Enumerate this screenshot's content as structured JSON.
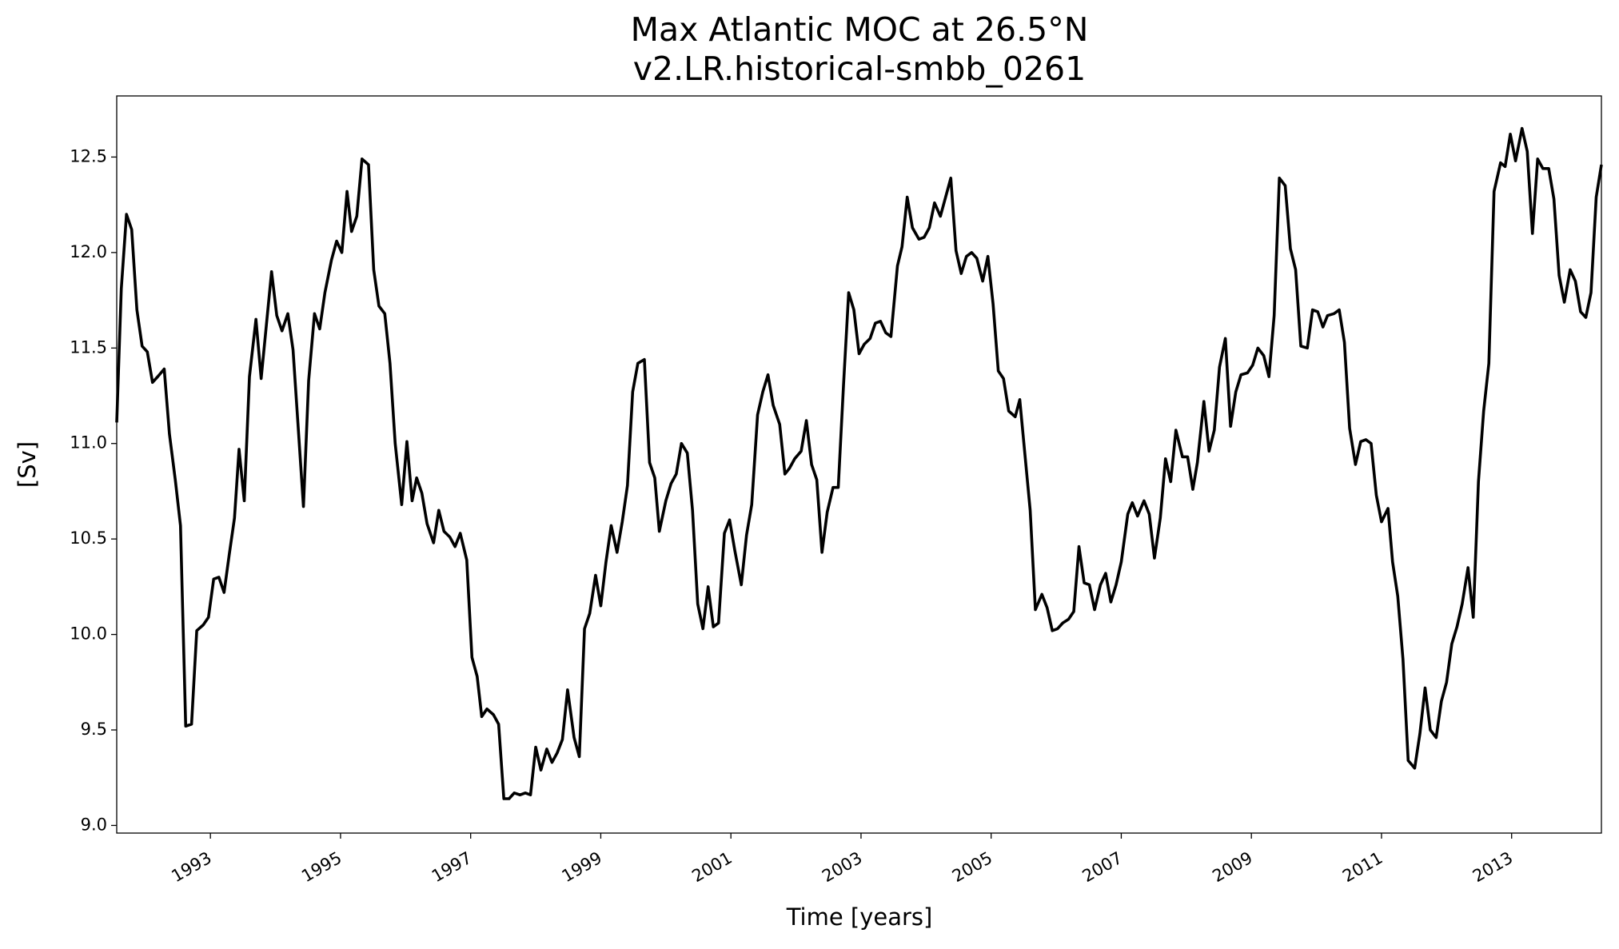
{
  "chart_data": {
    "type": "line",
    "title": "Max Atlantic MOC at 26.5°N",
    "subtitle": "v2.LR.historical-smbb_0261",
    "x_label": "Time [years]",
    "y_label": "[Sv]",
    "xlim": [
      1991.56,
      2014.38
    ],
    "ylim": [
      8.96,
      12.82
    ],
    "xticks": [
      1993,
      1995,
      1997,
      1999,
      2001,
      2003,
      2005,
      2007,
      2009,
      2011,
      2013
    ],
    "yticks": [
      {
        "value": 9,
        "label": "9.0"
      },
      {
        "value": 9.5,
        "label": "9.5"
      },
      {
        "value": 10,
        "label": "10.0"
      },
      {
        "value": 10.5,
        "label": "10.5"
      },
      {
        "value": 11,
        "label": "11.0"
      },
      {
        "value": 11.5,
        "label": "11.5"
      },
      {
        "value": 12,
        "label": "12.0"
      },
      {
        "value": 12.5,
        "label": "12.5"
      }
    ],
    "grid": false,
    "x": [
      1991.56,
      1991.63,
      1991.71,
      1991.79,
      1991.87,
      1991.95,
      1992.03,
      1992.11,
      1992.19,
      1992.29,
      1992.37,
      1992.46,
      1992.54,
      1992.62,
      1992.71,
      1992.79,
      1992.89,
      1992.97,
      1993.05,
      1993.13,
      1993.21,
      1993.29,
      1993.37,
      1993.44,
      1993.52,
      1993.6,
      1993.7,
      1993.78,
      1993.86,
      1993.94,
      1994.02,
      1994.1,
      1994.19,
      1994.27,
      1994.35,
      1994.43,
      1994.51,
      1994.6,
      1994.68,
      1994.76,
      1994.86,
      1994.94,
      1995.02,
      1995.1,
      1995.17,
      1995.25,
      1995.33,
      1995.43,
      1995.51,
      1995.59,
      1995.68,
      1995.76,
      1995.84,
      1995.94,
      1996.02,
      1996.1,
      1996.17,
      1996.25,
      1996.33,
      1996.43,
      1996.51,
      1996.59,
      1996.68,
      1996.76,
      1996.84,
      1996.94,
      1997.02,
      1997.1,
      1997.17,
      1997.25,
      1997.35,
      1997.43,
      1997.51,
      1997.59,
      1997.67,
      1997.76,
      1997.84,
      1997.92,
      1998.0,
      1998.08,
      1998.17,
      1998.25,
      1998.33,
      1998.41,
      1998.49,
      1998.59,
      1998.67,
      1998.75,
      1998.83,
      1998.92,
      1999.0,
      1999.08,
      1999.16,
      1999.25,
      1999.33,
      1999.41,
      1999.49,
      1999.57,
      1999.67,
      1999.75,
      1999.83,
      1999.9,
      2000.0,
      2000.08,
      2000.16,
      2000.24,
      2000.33,
      2000.41,
      2000.49,
      2000.57,
      2000.65,
      2000.73,
      2000.81,
      2000.9,
      2000.98,
      2001.06,
      2001.16,
      2001.24,
      2001.32,
      2001.41,
      2001.49,
      2001.57,
      2001.65,
      2001.75,
      2001.83,
      2001.9,
      2001.98,
      2002.08,
      2002.16,
      2002.24,
      2002.32,
      2002.4,
      2002.48,
      2002.57,
      2002.65,
      2002.73,
      2002.81,
      2002.89,
      2002.97,
      2003.05,
      2003.14,
      2003.22,
      2003.3,
      2003.38,
      2003.46,
      2003.56,
      2003.63,
      2003.71,
      2003.79,
      2003.89,
      2003.97,
      2004.05,
      2004.13,
      2004.22,
      2004.3,
      2004.38,
      2004.46,
      2004.54,
      2004.62,
      2004.7,
      2004.78,
      2004.87,
      2004.95,
      2005.03,
      2005.11,
      2005.19,
      2005.27,
      2005.37,
      2005.44,
      2005.52,
      2005.6,
      2005.68,
      2005.78,
      2005.86,
      2005.94,
      2006.02,
      2006.1,
      2006.19,
      2006.27,
      2006.35,
      2006.43,
      2006.51,
      2006.59,
      2006.68,
      2006.76,
      2006.84,
      2006.92,
      2007.0,
      2007.1,
      2007.17,
      2007.25,
      2007.35,
      2007.43,
      2007.51,
      2007.6,
      2007.68,
      2007.76,
      2007.84,
      2007.94,
      2008.02,
      2008.1,
      2008.17,
      2008.27,
      2008.35,
      2008.43,
      2008.51,
      2008.6,
      2008.68,
      2008.76,
      2008.84,
      2008.94,
      2009.02,
      2009.1,
      2009.19,
      2009.27,
      2009.35,
      2009.43,
      2009.52,
      2009.6,
      2009.68,
      2009.76,
      2009.86,
      2009.94,
      2010.02,
      2010.1,
      2010.17,
      2010.27,
      2010.35,
      2010.43,
      2010.51,
      2010.6,
      2010.68,
      2010.76,
      2010.84,
      2010.92,
      2011.0,
      2011.1,
      2011.17,
      2011.25,
      2011.33,
      2011.41,
      2011.51,
      2011.59,
      2011.67,
      2011.75,
      2011.84,
      2011.92,
      2012.0,
      2012.08,
      2012.16,
      2012.24,
      2012.33,
      2012.41,
      2012.49,
      2012.57,
      2012.65,
      2012.73,
      2012.83,
      2012.9,
      2012.98,
      2013.06,
      2013.16,
      2013.24,
      2013.32,
      2013.4,
      2013.48,
      2013.57,
      2013.65,
      2013.73,
      2013.81,
      2013.9,
      2013.98,
      2014.06,
      2014.14,
      2014.22,
      2014.3,
      2014.38
    ],
    "series": [
      {
        "color": "#000000",
        "values": [
          11.11,
          11.81,
          12.2,
          12.12,
          11.7,
          11.51,
          11.48,
          11.32,
          11.35,
          11.39,
          11.05,
          10.81,
          10.57,
          9.52,
          9.53,
          10.02,
          10.05,
          10.09,
          10.29,
          10.3,
          10.22,
          10.42,
          10.61,
          10.97,
          10.7,
          11.35,
          11.65,
          11.34,
          11.62,
          11.9,
          11.67,
          11.59,
          11.68,
          11.49,
          11.08,
          10.67,
          11.33,
          11.68,
          11.6,
          11.79,
          11.96,
          12.06,
          12.0,
          12.32,
          12.11,
          12.19,
          12.49,
          12.46,
          11.91,
          11.72,
          11.68,
          11.42,
          11.0,
          10.68,
          11.01,
          10.7,
          10.82,
          10.74,
          10.58,
          10.48,
          10.65,
          10.54,
          10.51,
          10.46,
          10.53,
          10.39,
          9.88,
          9.78,
          9.57,
          9.61,
          9.58,
          9.53,
          9.14,
          9.14,
          9.17,
          9.16,
          9.17,
          9.16,
          9.41,
          9.29,
          9.4,
          9.33,
          9.38,
          9.45,
          9.71,
          9.46,
          9.36,
          10.03,
          10.11,
          10.31,
          10.15,
          10.38,
          10.57,
          10.43,
          10.59,
          10.78,
          11.27,
          11.42,
          11.44,
          10.9,
          10.82,
          10.54,
          10.7,
          10.79,
          10.84,
          11.0,
          10.95,
          10.65,
          10.16,
          10.03,
          10.25,
          10.04,
          10.06,
          10.53,
          10.6,
          10.44,
          10.26,
          10.52,
          10.68,
          11.15,
          11.27,
          11.36,
          11.2,
          11.1,
          10.84,
          10.87,
          10.92,
          10.96,
          11.12,
          10.89,
          10.81,
          10.43,
          10.64,
          10.77,
          10.77,
          11.3,
          11.79,
          11.7,
          11.47,
          11.52,
          11.55,
          11.63,
          11.64,
          11.58,
          11.56,
          11.93,
          12.03,
          12.29,
          12.13,
          12.07,
          12.08,
          12.13,
          12.26,
          12.19,
          12.29,
          12.39,
          12.01,
          11.89,
          11.98,
          12.0,
          11.97,
          11.85,
          11.98,
          11.73,
          11.38,
          11.34,
          11.17,
          11.14,
          11.23,
          10.94,
          10.65,
          10.13,
          10.21,
          10.14,
          10.02,
          10.03,
          10.06,
          10.08,
          10.12,
          10.46,
          10.27,
          10.26,
          10.13,
          10.26,
          10.32,
          10.17,
          10.26,
          10.38,
          10.63,
          10.69,
          10.62,
          10.7,
          10.63,
          10.4,
          10.61,
          10.92,
          10.8,
          11.07,
          10.93,
          10.93,
          10.76,
          10.9,
          11.22,
          10.96,
          11.07,
          11.4,
          11.55,
          11.09,
          11.27,
          11.36,
          11.37,
          11.41,
          11.5,
          11.46,
          11.35,
          11.67,
          12.39,
          12.35,
          12.02,
          11.91,
          11.51,
          11.5,
          11.7,
          11.69,
          11.61,
          11.67,
          11.68,
          11.7,
          11.53,
          11.08,
          10.89,
          11.01,
          11.02,
          11.0,
          10.73,
          10.59,
          10.66,
          10.38,
          10.2,
          9.87,
          9.34,
          9.3,
          9.48,
          9.72,
          9.5,
          9.46,
          9.65,
          9.75,
          9.95,
          10.04,
          10.16,
          10.35,
          10.09,
          10.8,
          11.17,
          11.42,
          12.32,
          12.47,
          12.45,
          12.62,
          12.48,
          12.65,
          12.53,
          12.1,
          12.49,
          12.44,
          12.44,
          12.28,
          11.88,
          11.74,
          11.91,
          11.85,
          11.69,
          11.66,
          11.79,
          12.29,
          12.46
        ]
      }
    ]
  }
}
